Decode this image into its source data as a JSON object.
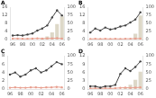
{
  "chart_data": [
    {
      "type": "bar",
      "title": "A",
      "categories": [
        "96",
        null,
        "98",
        null,
        "00",
        null,
        "02",
        null,
        "04",
        null,
        "06"
      ],
      "series": [
        {
          "type": "bar",
          "axis": "y2",
          "color": "#ddd8c8",
          "values": [
            0,
            0,
            0,
            0,
            0,
            0,
            3,
            10,
            22,
            48,
            72
          ]
        },
        {
          "type": "line",
          "color": "#444444",
          "marker": "circle",
          "values": [
            2.0,
            2.2,
            2.0,
            2.5,
            3.0,
            4.5,
            5.5,
            7.0,
            11.0,
            14.5,
            12.0
          ]
        },
        {
          "type": "line",
          "color": "#e8a090",
          "marker": "circle",
          "values": [
            0.5,
            0.5,
            0.4,
            0.4,
            0.5,
            0.6,
            0.5,
            0.6,
            0.6,
            0.7,
            0.5
          ]
        }
      ],
      "ylim": [
        0,
        16
      ],
      "yticks": [
        0,
        4,
        8,
        12,
        16
      ],
      "y2lim": [
        0,
        100
      ],
      "y2ticks": [
        0,
        25,
        50,
        75,
        100
      ],
      "grid": false
    },
    {
      "type": "bar",
      "title": "B",
      "categories": [
        "96",
        null,
        "98",
        null,
        "00",
        null,
        "02",
        null,
        "04",
        null,
        "06"
      ],
      "series": [
        {
          "type": "bar",
          "axis": "y2",
          "color": "#ddd8c8",
          "values": [
            0,
            0,
            0,
            0,
            0,
            0,
            0,
            0,
            0,
            18,
            75
          ]
        },
        {
          "type": "line",
          "color": "#444444",
          "marker": "circle",
          "values": [
            3.5,
            5.5,
            4.5,
            6.0,
            5.0,
            5.5,
            6.5,
            7.0,
            8.5,
            10.0,
            13.5
          ]
        },
        {
          "type": "line",
          "color": "#e8a090",
          "marker": "circle",
          "values": [
            0.3,
            0.4,
            0.3,
            0.4,
            0.3,
            0.4,
            0.3,
            0.4,
            0.4,
            0.5,
            0.5
          ]
        }
      ],
      "ylim": [
        0,
        16
      ],
      "yticks": [
        0,
        4,
        8,
        12,
        16
      ],
      "y2lim": [
        0,
        100
      ],
      "y2ticks": [
        0,
        25,
        50,
        75,
        100
      ],
      "grid": false
    },
    {
      "type": "bar",
      "title": "C",
      "categories": [
        "96",
        null,
        "98",
        null,
        "00",
        null,
        "02",
        null,
        "04",
        null,
        "06"
      ],
      "series": [
        {
          "type": "bar",
          "axis": "y2",
          "color": "#ddd8c8",
          "values": [
            0,
            0,
            0,
            0,
            0,
            0,
            0.1,
            0.2,
            0.3,
            0.4,
            0.5
          ]
        },
        {
          "type": "line",
          "color": "#444444",
          "marker": "circle",
          "values": [
            3.5,
            4.0,
            3.0,
            3.5,
            4.5,
            5.0,
            4.0,
            4.5,
            5.5,
            6.5,
            6.0
          ]
        },
        {
          "type": "line",
          "color": "#e8a090",
          "marker": "circle",
          "values": [
            0.3,
            0.4,
            0.3,
            0.3,
            0.4,
            0.4,
            0.3,
            0.4,
            0.4,
            0.5,
            0.4
          ]
        }
      ],
      "ylim": [
        0,
        8
      ],
      "yticks": [
        0,
        2,
        4,
        6,
        8
      ],
      "y2lim": [
        0,
        100
      ],
      "y2ticks": [
        0,
        25,
        50,
        75,
        100
      ],
      "grid": false
    },
    {
      "type": "bar",
      "title": "D",
      "categories": [
        "96",
        null,
        "98",
        null,
        "00",
        null,
        "02",
        null,
        "04",
        null,
        "06"
      ],
      "series": [
        {
          "type": "bar",
          "axis": "y2",
          "color": "#ddd8c8",
          "values": [
            0,
            0,
            0,
            0,
            0,
            0,
            0,
            4,
            13,
            28,
            52
          ]
        },
        {
          "type": "line",
          "color": "#444444",
          "marker": "circle",
          "values": [
            1.0,
            1.0,
            0.5,
            1.0,
            1.0,
            1.5,
            5.5,
            7.5,
            6.5,
            8.0,
            10.0
          ]
        },
        {
          "type": "line",
          "color": "#e8a090",
          "marker": "circle",
          "values": [
            0.2,
            0.3,
            0.2,
            0.3,
            0.2,
            0.3,
            0.4,
            0.5,
            0.4,
            0.5,
            0.6
          ]
        }
      ],
      "ylim": [
        0,
        12
      ],
      "yticks": [
        0,
        3,
        6,
        9,
        12
      ],
      "y2lim": [
        0,
        100
      ],
      "y2ticks": [
        0,
        25,
        50,
        75,
        100
      ],
      "grid": false
    }
  ]
}
